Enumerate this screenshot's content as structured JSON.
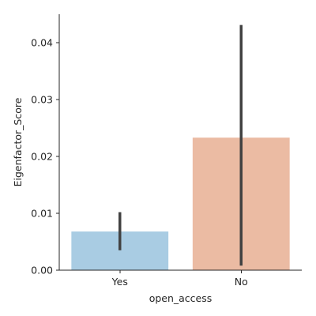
{
  "chart_data": {
    "type": "bar",
    "categories": [
      "Yes",
      "No"
    ],
    "values": [
      0.0068,
      0.0233
    ],
    "error_low": [
      0.0035,
      0.0008
    ],
    "error_high": [
      0.0102,
      0.0431
    ],
    "colors": [
      "#a9cce3",
      "#ebbba3"
    ],
    "error_color": "#424242",
    "xlabel": "open_access",
    "ylabel": "Eigenfactor_Score",
    "ylim": [
      0,
      0.045
    ],
    "yticks": [
      0.0,
      0.01,
      0.02,
      0.03,
      0.04
    ],
    "ytick_labels": [
      "0.00",
      "0.01",
      "0.02",
      "0.03",
      "0.04"
    ],
    "grid": false,
    "legend": "none"
  }
}
